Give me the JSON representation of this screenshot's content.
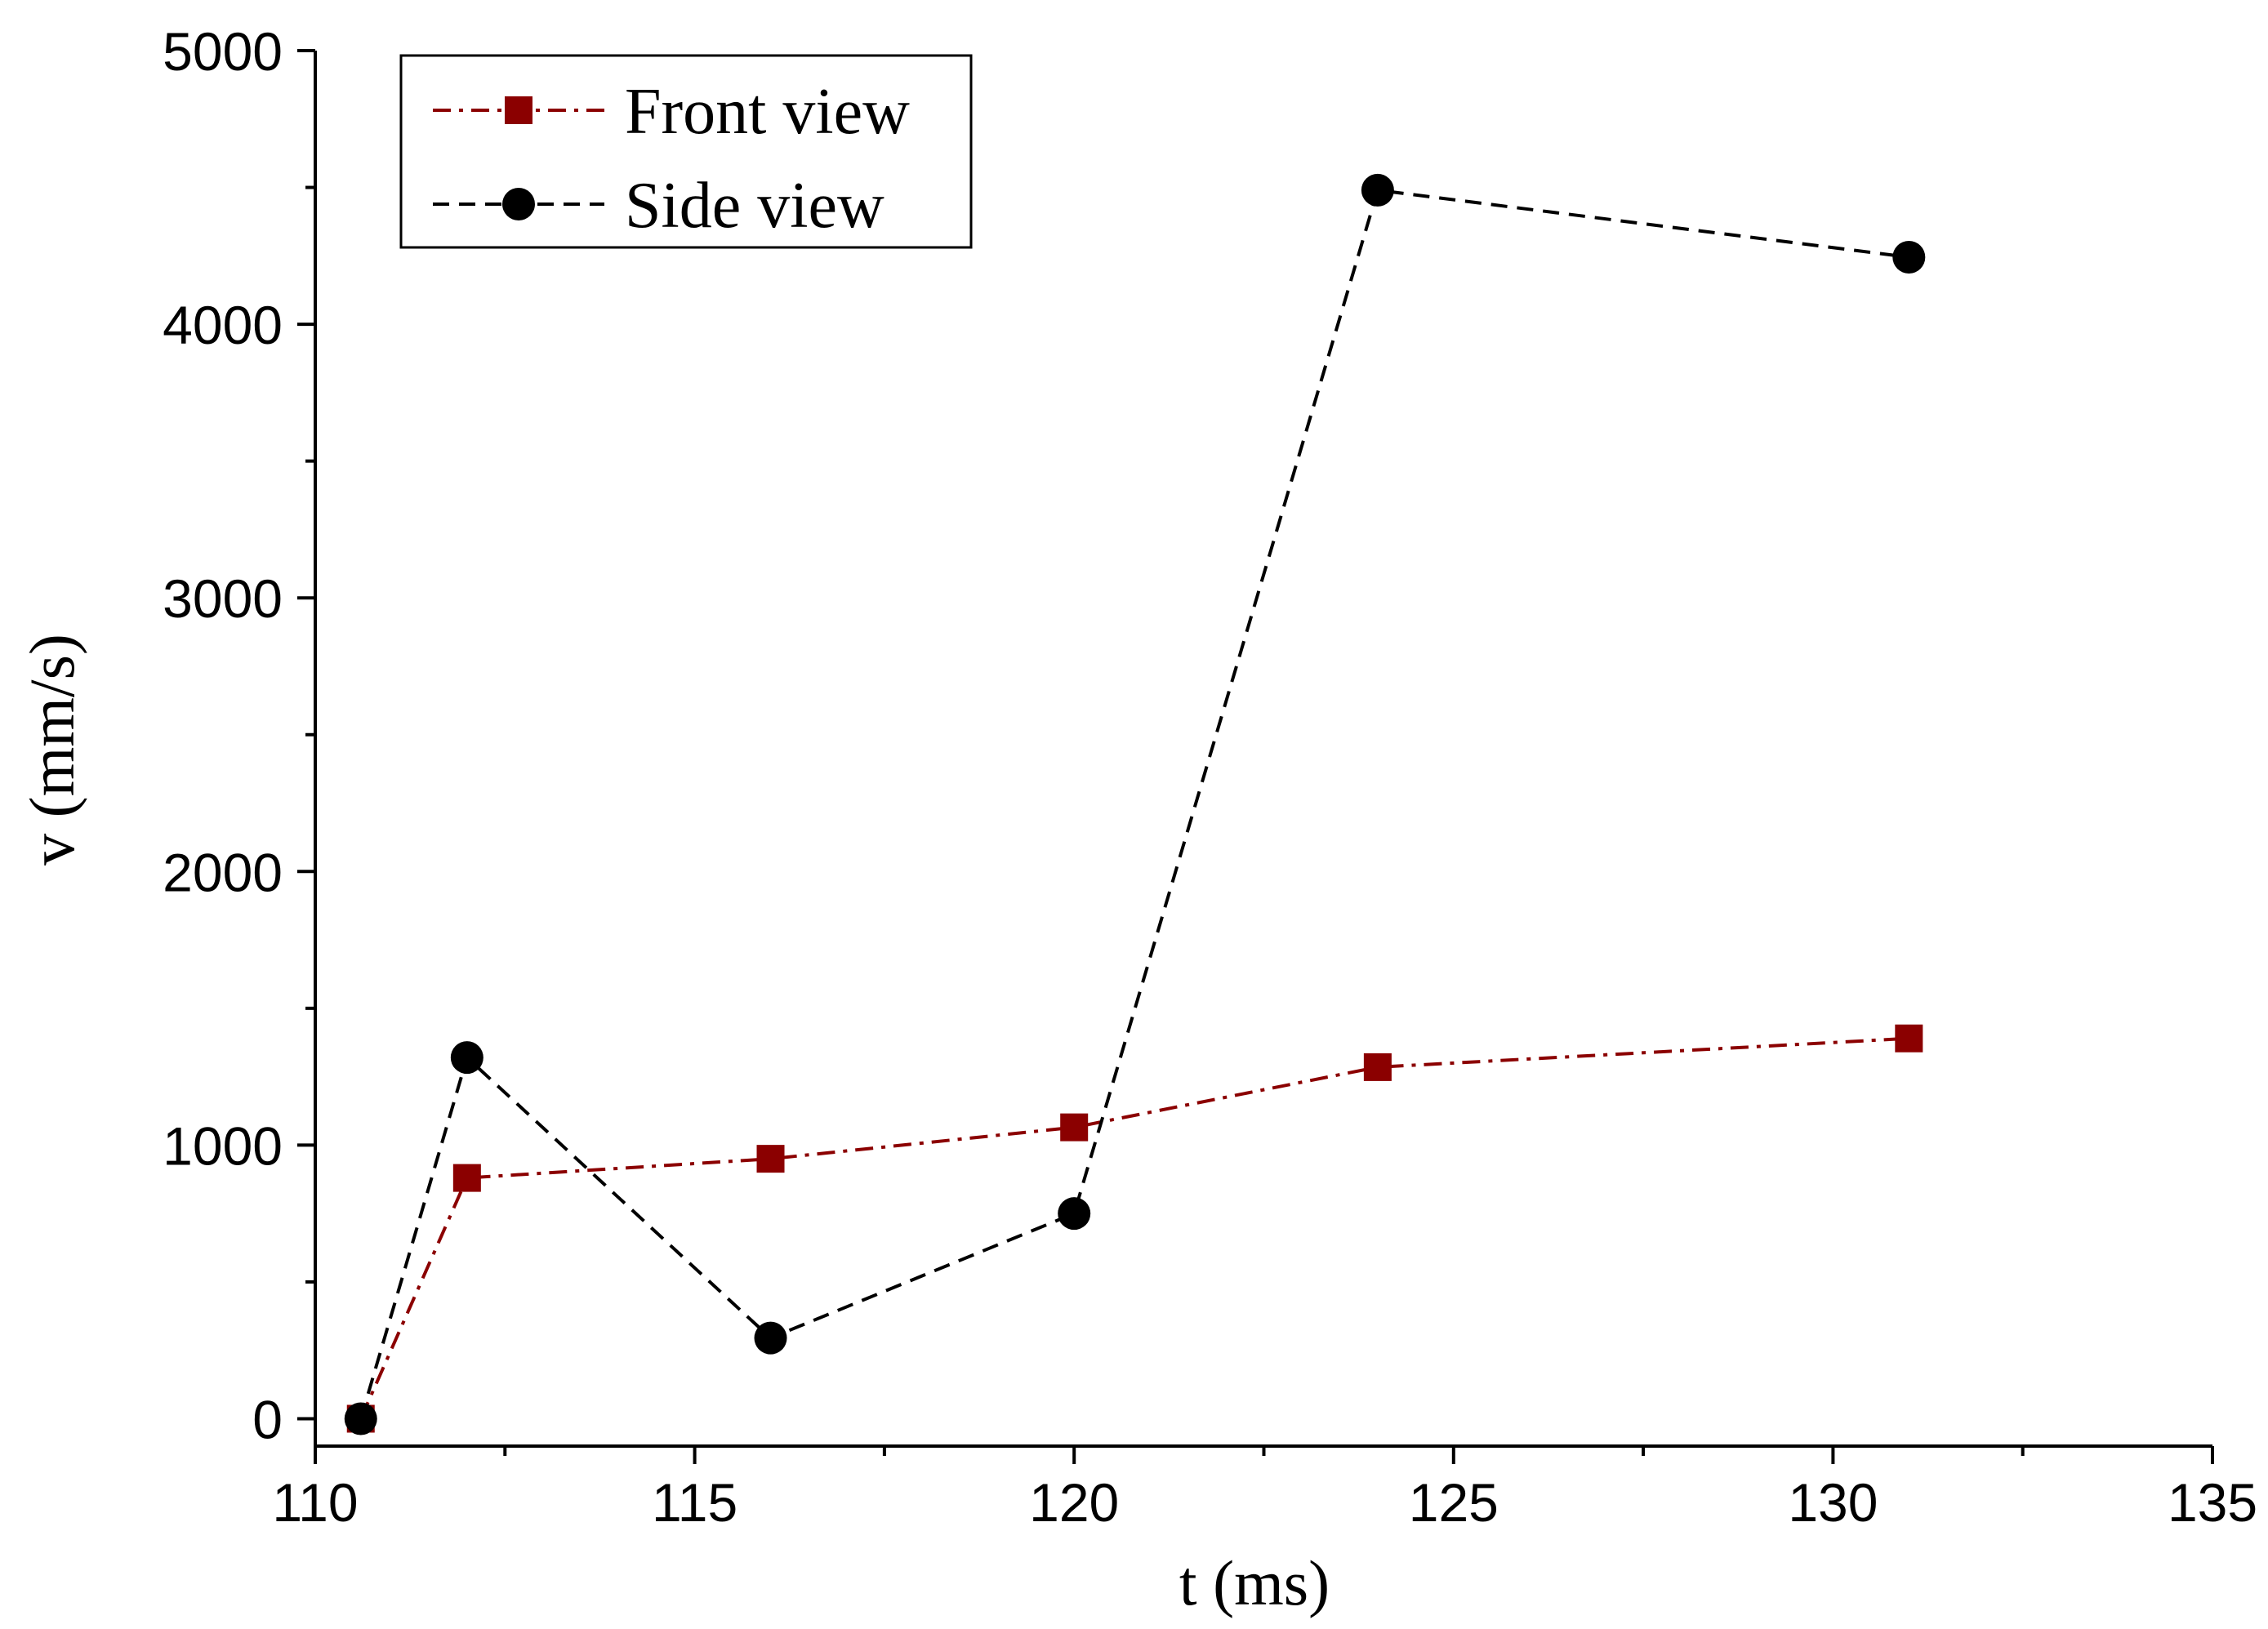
{
  "chart_data": {
    "type": "line",
    "title": "",
    "xlabel": "t (ms)",
    "ylabel": "v (mm/s)",
    "xlim": [
      110,
      135
    ],
    "ylim": [
      -100,
      5000
    ],
    "xticks": [
      110,
      115,
      120,
      125,
      130,
      135
    ],
    "yticks": [
      0,
      1000,
      2000,
      3000,
      4000,
      5000
    ],
    "xtick_labels": [
      "110",
      "115",
      "120",
      "125",
      "130",
      "135"
    ],
    "ytick_labels": [
      "0",
      "1000",
      "2000",
      "3000",
      "4000",
      "5000"
    ],
    "grid": false,
    "legend_position": "top-left",
    "series": [
      {
        "name": "Front view",
        "color": "#8b0000",
        "marker": "square",
        "linestyle": "dash-dot",
        "x": [
          110.6,
          112,
          116,
          120,
          124,
          131
        ],
        "y": [
          0,
          880,
          950,
          1065,
          1285,
          1390
        ]
      },
      {
        "name": "Side view",
        "color": "#000000",
        "marker": "circle",
        "linestyle": "dashed",
        "x": [
          110.6,
          112,
          116,
          120,
          124,
          131
        ],
        "y": [
          0,
          1320,
          295,
          750,
          4490,
          4245
        ]
      }
    ]
  }
}
